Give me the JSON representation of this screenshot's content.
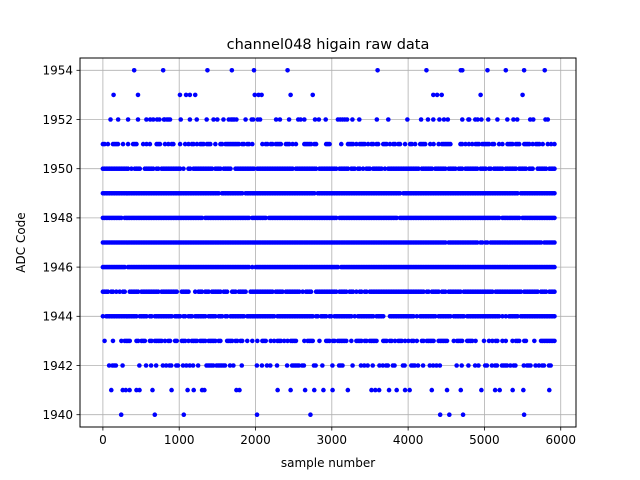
{
  "chart_data": {
    "type": "scatter",
    "title": "channel048 higain raw data",
    "xlabel": "sample number",
    "ylabel": "ADC Code",
    "xlim": [
      -300,
      6200
    ],
    "ylim": [
      1939.5,
      1954.5
    ],
    "xticks": [
      0,
      1000,
      2000,
      3000,
      4000,
      5000,
      6000
    ],
    "xtick_labels": [
      "0",
      "1000",
      "2000",
      "3000",
      "4000",
      "5000",
      "6000"
    ],
    "yticks": [
      1940,
      1942,
      1944,
      1946,
      1948,
      1950,
      1952,
      1954
    ],
    "ytick_labels": [
      "1940",
      "1942",
      "1944",
      "1946",
      "1948",
      "1950",
      "1952",
      "1954"
    ],
    "grid": true,
    "marker_color": "#0000ff",
    "x_range": [
      0,
      5930
    ],
    "series": [
      {
        "values_by_level": [
          {
            "y": 1954,
            "x": [
              410,
              790,
              1370,
              1690,
              1980,
              2420,
              3600,
              4240,
              4690,
              4710,
              5040,
              5280,
              5520,
              5790
            ]
          },
          {
            "y": 1953,
            "x": [
              140,
              460,
              1010,
              1090,
              1140,
              1210,
              1990,
              2040,
              2080,
              2460,
              2750,
              4330,
              4380,
              4440,
              4950,
              5500
            ]
          },
          {
            "y": 1952,
            "x": [
              100,
              200,
              330,
              460,
              570,
              620,
              660,
              710,
              740,
              800,
              810,
              840,
              860,
              880,
              1020,
              1140,
              1230,
              1360,
              1450,
              1500,
              1580,
              1650,
              1680,
              1700,
              1720,
              1750,
              1870,
              1950,
              1970,
              2030,
              2060,
              2270,
              2320,
              2440,
              2560,
              2590,
              2640,
              2780,
              2830,
              2920,
              3080,
              3110,
              3140,
              3170,
              3200,
              3270,
              3360,
              3590,
              3740,
              3990,
              4170,
              4260,
              4330,
              4410,
              4470,
              4520,
              4710,
              4790,
              4800,
              4880,
              4910,
              4960,
              5050,
              5170,
              5300,
              5380,
              5430,
              5600,
              5640,
              5800,
              5830
            ]
          },
          {
            "y": 1941,
            "x": [
              110,
              260,
              300,
              350,
              440,
              480,
              650,
              900,
              1110,
              1190,
              1300,
              1330,
              1750,
              1790,
              2290,
              2460,
              2650,
              2770,
              2890,
              3010,
              3210,
              3520,
              3570,
              3620,
              3750,
              3850,
              3960,
              4020,
              4310,
              4510,
              4690,
              4960,
              5140,
              5200,
              5370,
              5510,
              5850
            ]
          },
          {
            "y": 1940,
            "x": [
              240,
              680,
              1060,
              2020,
              2720,
              4420,
              4540,
              4720,
              5520
            ]
          }
        ],
        "dense_levels": [
          1943,
          1944,
          1945,
          1946,
          1947,
          1948,
          1949,
          1950,
          1951
        ],
        "sparse_levels": [
          1942
        ]
      }
    ]
  }
}
